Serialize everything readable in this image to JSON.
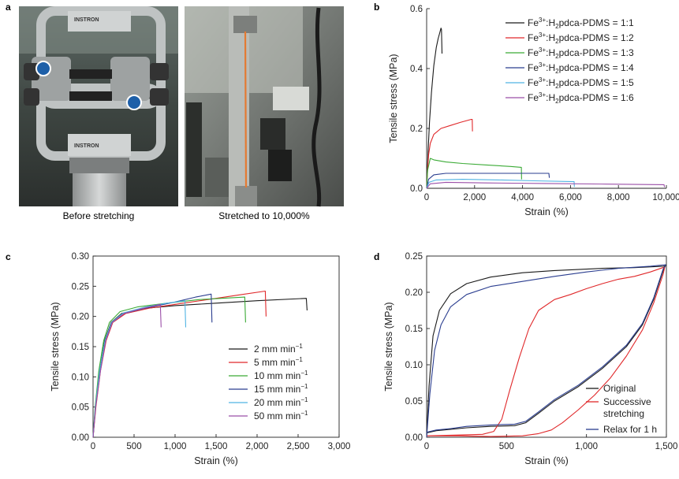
{
  "panels": {
    "a": {
      "letter": "a",
      "photo_left_caption": "Before stretching",
      "photo_right_caption": "Stretched to 10,000%",
      "machine_brand": "INSTRON"
    },
    "b": {
      "letter": "b"
    },
    "c": {
      "letter": "c"
    },
    "d": {
      "letter": "d"
    }
  },
  "colors": {
    "black": "#1a1a1a",
    "red": "#e0282a",
    "green": "#3aaa35",
    "navy": "#2a3d8f",
    "cyan": "#4fb3e3",
    "purple": "#9b4fa8"
  },
  "chart_data": [
    {
      "id": "b",
      "type": "line",
      "xlabel": "Strain (%)",
      "ylabel": "Tensile stress (MPa)",
      "xlim": [
        0,
        10000
      ],
      "ylim": [
        0,
        0.6
      ],
      "xticks": [
        0,
        2000,
        4000,
        6000,
        8000,
        10000
      ],
      "xtick_labels": [
        "0",
        "2,000",
        "4,000",
        "6,000",
        "8,000",
        "10,000"
      ],
      "yticks": [
        0,
        0.2,
        0.4,
        0.6
      ],
      "ytick_labels": [
        "0.0",
        "0.2",
        "0.4",
        "0.6"
      ],
      "legend_position": "top-right",
      "series": [
        {
          "name_pre": "Fe",
          "name_sup": "3+",
          "name_mid": ":H",
          "name_sub": "2",
          "name_post": "pdca-PDMS = 1:1",
          "color": "black",
          "points": [
            [
              0,
              0
            ],
            [
              20,
              0.04
            ],
            [
              60,
              0.12
            ],
            [
              120,
              0.22
            ],
            [
              200,
              0.32
            ],
            [
              300,
              0.41
            ],
            [
              400,
              0.47
            ],
            [
              480,
              0.5
            ],
            [
              550,
              0.52
            ],
            [
              600,
              0.535
            ],
            [
              620,
              0.53
            ],
            [
              640,
              0.45
            ]
          ]
        },
        {
          "name_pre": "Fe",
          "name_sup": "3+",
          "name_mid": ":H",
          "name_sub": "2",
          "name_post": "pdca-PDMS = 1:2",
          "color": "red",
          "points": [
            [
              0,
              0
            ],
            [
              30,
              0.05
            ],
            [
              80,
              0.11
            ],
            [
              150,
              0.15
            ],
            [
              300,
              0.18
            ],
            [
              600,
              0.2
            ],
            [
              1000,
              0.21
            ],
            [
              1400,
              0.22
            ],
            [
              1850,
              0.23
            ],
            [
              1900,
              0.23
            ],
            [
              1910,
              0.19
            ]
          ]
        },
        {
          "name_pre": "Fe",
          "name_sup": "3+",
          "name_mid": ":H",
          "name_sub": "2",
          "name_post": "pdca-PDMS = 1:3",
          "color": "green",
          "points": [
            [
              0,
              0
            ],
            [
              40,
              0.06
            ],
            [
              150,
              0.1
            ],
            [
              300,
              0.095
            ],
            [
              800,
              0.088
            ],
            [
              1500,
              0.083
            ],
            [
              2500,
              0.078
            ],
            [
              3500,
              0.073
            ],
            [
              3950,
              0.07
            ],
            [
              3960,
              0.03
            ]
          ]
        },
        {
          "name_pre": "Fe",
          "name_sup": "3+",
          "name_mid": ":H",
          "name_sub": "2",
          "name_post": "pdca-PDMS = 1:4",
          "color": "navy",
          "points": [
            [
              0,
              0
            ],
            [
              80,
              0.03
            ],
            [
              300,
              0.045
            ],
            [
              800,
              0.05
            ],
            [
              2000,
              0.05
            ],
            [
              3500,
              0.05
            ],
            [
              5100,
              0.05
            ],
            [
              5120,
              0.035
            ]
          ]
        },
        {
          "name_pre": "Fe",
          "name_sup": "3+",
          "name_mid": ":H",
          "name_sub": "2",
          "name_post": "pdca-PDMS = 1:5",
          "color": "cyan",
          "points": [
            [
              0,
              0
            ],
            [
              100,
              0.02
            ],
            [
              400,
              0.028
            ],
            [
              1500,
              0.03
            ],
            [
              3000,
              0.028
            ],
            [
              4500,
              0.025
            ],
            [
              6150,
              0.022
            ],
            [
              6160,
              0.005
            ]
          ]
        },
        {
          "name_pre": "Fe",
          "name_sup": "3+",
          "name_mid": ":H",
          "name_sub": "2",
          "name_post": "pdca-PDMS = 1:6",
          "color": "purple",
          "points": [
            [
              0,
              0
            ],
            [
              150,
              0.015
            ],
            [
              800,
              0.02
            ],
            [
              2500,
              0.018
            ],
            [
              5000,
              0.016
            ],
            [
              7500,
              0.014
            ],
            [
              9900,
              0.012
            ],
            [
              9920,
              0.004
            ]
          ]
        }
      ]
    },
    {
      "id": "c",
      "type": "line",
      "xlabel": "Strain (%)",
      "ylabel": "Tensile stress (MPa)",
      "xlim": [
        0,
        3000
      ],
      "ylim": [
        0,
        0.3
      ],
      "xticks": [
        0,
        500,
        1000,
        1500,
        2000,
        2500,
        3000
      ],
      "xtick_labels": [
        "0",
        "500",
        "1,000",
        "1,500",
        "2,000",
        "2,500",
        "3,000"
      ],
      "yticks": [
        0,
        0.05,
        0.1,
        0.15,
        0.2,
        0.25,
        0.3
      ],
      "ytick_labels": [
        "0.00",
        "0.05",
        "0.10",
        "0.15",
        "0.20",
        "0.25",
        "0.30"
      ],
      "legend_position": "bottom-right",
      "series": [
        {
          "label": "2 mm min",
          "sup": "−1",
          "color": "black",
          "points": [
            [
              0,
              0
            ],
            [
              30,
              0.05
            ],
            [
              80,
              0.11
            ],
            [
              140,
              0.16
            ],
            [
              220,
              0.19
            ],
            [
              350,
              0.205
            ],
            [
              600,
              0.213
            ],
            [
              1000,
              0.218
            ],
            [
              1500,
              0.222
            ],
            [
              2000,
              0.226
            ],
            [
              2600,
              0.23
            ],
            [
              2610,
              0.21
            ]
          ]
        },
        {
          "label": "5 mm min",
          "sup": "−1",
          "color": "red",
          "points": [
            [
              0,
              0
            ],
            [
              35,
              0.05
            ],
            [
              90,
              0.11
            ],
            [
              160,
              0.16
            ],
            [
              240,
              0.19
            ],
            [
              400,
              0.205
            ],
            [
              700,
              0.214
            ],
            [
              1100,
              0.222
            ],
            [
              1500,
              0.23
            ],
            [
              1800,
              0.236
            ],
            [
              2100,
              0.242
            ],
            [
              2110,
              0.2
            ]
          ]
        },
        {
          "label": "10 mm min",
          "sup": "−1",
          "color": "green",
          "points": [
            [
              0,
              0
            ],
            [
              25,
              0.05
            ],
            [
              70,
              0.11
            ],
            [
              130,
              0.16
            ],
            [
              200,
              0.19
            ],
            [
              330,
              0.208
            ],
            [
              550,
              0.216
            ],
            [
              900,
              0.222
            ],
            [
              1300,
              0.228
            ],
            [
              1850,
              0.232
            ],
            [
              1860,
              0.19
            ]
          ]
        },
        {
          "label": "15 mm min",
          "sup": "−1",
          "color": "navy",
          "points": [
            [
              0,
              0
            ],
            [
              30,
              0.05
            ],
            [
              85,
              0.11
            ],
            [
              150,
              0.16
            ],
            [
              230,
              0.19
            ],
            [
              380,
              0.205
            ],
            [
              650,
              0.214
            ],
            [
              1000,
              0.224
            ],
            [
              1250,
              0.232
            ],
            [
              1440,
              0.237
            ],
            [
              1450,
              0.19
            ]
          ]
        },
        {
          "label": "20 mm min",
          "sup": "−1",
          "color": "cyan",
          "points": [
            [
              0,
              0
            ],
            [
              28,
              0.05
            ],
            [
              80,
              0.11
            ],
            [
              145,
              0.16
            ],
            [
              225,
              0.19
            ],
            [
              370,
              0.206
            ],
            [
              650,
              0.216
            ],
            [
              900,
              0.222
            ],
            [
              1120,
              0.226
            ],
            [
              1130,
              0.182
            ]
          ]
        },
        {
          "label": "50 mm min",
          "sup": "−1",
          "color": "purple",
          "points": [
            [
              0,
              0
            ],
            [
              32,
              0.05
            ],
            [
              90,
              0.11
            ],
            [
              155,
              0.16
            ],
            [
              235,
              0.19
            ],
            [
              380,
              0.205
            ],
            [
              600,
              0.213
            ],
            [
              820,
              0.22
            ],
            [
              830,
              0.182
            ]
          ]
        }
      ]
    },
    {
      "id": "d",
      "type": "line",
      "xlabel": "Strain (%)",
      "ylabel": "Tensile stress (MPa)",
      "xlim": [
        0,
        1500
      ],
      "ylim": [
        0,
        0.25
      ],
      "xticks": [
        0,
        500,
        1000,
        1500
      ],
      "xtick_labels": [
        "0",
        "500",
        "1,000",
        "1,500"
      ],
      "yticks": [
        0,
        0.05,
        0.1,
        0.15,
        0.2,
        0.25
      ],
      "ytick_labels": [
        "0.00",
        "0.05",
        "0.10",
        "0.15",
        "0.20",
        "0.25"
      ],
      "legend_position": "bottom-right",
      "series": [
        {
          "label": "Original",
          "color": "black",
          "points": [
            [
              0,
              0
            ],
            [
              15,
              0.07
            ],
            [
              40,
              0.14
            ],
            [
              80,
              0.175
            ],
            [
              150,
              0.198
            ],
            [
              250,
              0.212
            ],
            [
              400,
              0.221
            ],
            [
              600,
              0.227
            ],
            [
              800,
              0.23
            ],
            [
              1100,
              0.233
            ],
            [
              1300,
              0.234
            ],
            [
              1480,
              0.236
            ],
            [
              1495,
              0.237
            ],
            [
              1480,
              0.23
            ],
            [
              1420,
              0.19
            ],
            [
              1350,
              0.155
            ],
            [
              1250,
              0.125
            ],
            [
              1100,
              0.095
            ],
            [
              950,
              0.07
            ],
            [
              800,
              0.05
            ],
            [
              700,
              0.033
            ],
            [
              620,
              0.02
            ],
            [
              550,
              0.016
            ],
            [
              400,
              0.015
            ],
            [
              250,
              0.013
            ],
            [
              150,
              0.011
            ],
            [
              60,
              0.009
            ],
            [
              0,
              0.006
            ]
          ]
        },
        {
          "label": "Successive",
          "label2": "stretching",
          "color": "red",
          "points": [
            [
              0,
              0.002
            ],
            [
              200,
              0.003
            ],
            [
              350,
              0.004
            ],
            [
              420,
              0.008
            ],
            [
              470,
              0.025
            ],
            [
              520,
              0.065
            ],
            [
              580,
              0.11
            ],
            [
              640,
              0.15
            ],
            [
              700,
              0.175
            ],
            [
              800,
              0.19
            ],
            [
              900,
              0.197
            ],
            [
              1000,
              0.205
            ],
            [
              1100,
              0.212
            ],
            [
              1200,
              0.218
            ],
            [
              1300,
              0.222
            ],
            [
              1400,
              0.228
            ],
            [
              1490,
              0.235
            ],
            [
              1480,
              0.225
            ],
            [
              1420,
              0.185
            ],
            [
              1350,
              0.148
            ],
            [
              1250,
              0.112
            ],
            [
              1150,
              0.082
            ],
            [
              1050,
              0.058
            ],
            [
              950,
              0.038
            ],
            [
              850,
              0.02
            ],
            [
              780,
              0.01
            ],
            [
              700,
              0.005
            ],
            [
              600,
              0.002
            ],
            [
              400,
              0.001
            ],
            [
              200,
              0.002
            ],
            [
              0,
              0.002
            ]
          ]
        },
        {
          "label": "Relax for 1 h",
          "color": "navy",
          "points": [
            [
              0,
              0
            ],
            [
              20,
              0.06
            ],
            [
              50,
              0.12
            ],
            [
              90,
              0.155
            ],
            [
              150,
              0.18
            ],
            [
              250,
              0.197
            ],
            [
              400,
              0.208
            ],
            [
              600,
              0.215
            ],
            [
              800,
              0.222
            ],
            [
              1000,
              0.228
            ],
            [
              1200,
              0.233
            ],
            [
              1400,
              0.236
            ],
            [
              1495,
              0.238
            ],
            [
              1480,
              0.232
            ],
            [
              1420,
              0.192
            ],
            [
              1350,
              0.157
            ],
            [
              1250,
              0.127
            ],
            [
              1100,
              0.097
            ],
            [
              950,
              0.072
            ],
            [
              800,
              0.052
            ],
            [
              700,
              0.035
            ],
            [
              620,
              0.022
            ],
            [
              550,
              0.018
            ],
            [
              400,
              0.017
            ],
            [
              250,
              0.015
            ],
            [
              150,
              0.012
            ],
            [
              60,
              0.01
            ],
            [
              0,
              0.007
            ]
          ]
        }
      ]
    }
  ]
}
